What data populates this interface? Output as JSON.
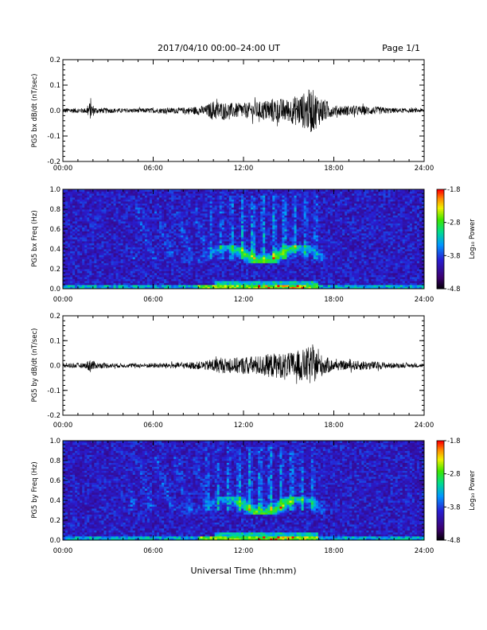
{
  "header": {
    "title": "2017/04/10  00:00–24:00 UT",
    "page": "Page 1/1"
  },
  "xlabel": "Universal Time (hh:mm)",
  "colors": {
    "background": "#ffffff",
    "axis": "#000000",
    "waveform": "#000000"
  },
  "chart_data": [
    {
      "type": "line",
      "ylabel": "PG5 bx dB/dt (nT/sec)",
      "xlim": [
        0,
        24
      ],
      "ylim": [
        -0.2,
        0.2
      ],
      "x_ticks": [
        "00:00",
        "06:00",
        "12:00",
        "18:00",
        "24:00"
      ],
      "y_ticks": [
        "-0.2",
        "-0.1",
        "0.0",
        "0.1",
        "0.2"
      ],
      "envelope": {
        "hours": [
          0,
          1.5,
          1.8,
          2.2,
          4,
          6,
          8,
          9.5,
          10,
          11,
          12,
          13,
          14,
          15,
          15.5,
          16,
          16.5,
          17,
          17.5,
          18,
          19,
          20,
          21,
          22,
          23,
          24
        ],
        "amplitude": [
          0.01,
          0.01,
          0.035,
          0.012,
          0.008,
          0.01,
          0.012,
          0.02,
          0.04,
          0.03,
          0.03,
          0.035,
          0.05,
          0.045,
          0.06,
          0.07,
          0.09,
          0.06,
          0.04,
          0.02,
          0.02,
          0.018,
          0.015,
          0.01,
          0.008,
          0.008
        ]
      }
    },
    {
      "type": "heatmap",
      "ylabel": "PG5 bx Freq (Hz)",
      "xlim": [
        0,
        24
      ],
      "ylim": [
        0,
        1.0
      ],
      "x_ticks": [
        "00:00",
        "06:00",
        "12:00",
        "18:00",
        "24:00"
      ],
      "y_ticks": [
        "0.0",
        "0.2",
        "0.4",
        "0.6",
        "0.8",
        "1.0"
      ],
      "colorbar": {
        "label": "Log₁₀ Power",
        "range": [
          -4.8,
          -1.8
        ],
        "ticks": [
          "-1.8",
          "-2.8",
          "-3.8",
          "-4.8"
        ]
      },
      "features": {
        "low_band_hours": [
          0,
          24
        ],
        "activity_hours": [
          4.5,
          17.5
        ],
        "peak_hours": [
          11,
          16.5
        ]
      }
    },
    {
      "type": "line",
      "ylabel": "PG5 by dB/dt (nT/sec)",
      "xlim": [
        0,
        24
      ],
      "ylim": [
        -0.2,
        0.2
      ],
      "x_ticks": [
        "00:00",
        "06:00",
        "12:00",
        "18:00",
        "24:00"
      ],
      "y_ticks": [
        "-0.2",
        "-0.1",
        "0.0",
        "0.1",
        "0.2"
      ],
      "envelope": {
        "hours": [
          0,
          1.5,
          1.8,
          2.2,
          4,
          6,
          8,
          9.5,
          10,
          11,
          12,
          13,
          14,
          15,
          15.5,
          16,
          16.5,
          17,
          17.5,
          18,
          19,
          20,
          21,
          22,
          23,
          24
        ],
        "amplitude": [
          0.01,
          0.01,
          0.03,
          0.012,
          0.008,
          0.01,
          0.012,
          0.018,
          0.03,
          0.03,
          0.035,
          0.04,
          0.05,
          0.05,
          0.06,
          0.065,
          0.08,
          0.05,
          0.035,
          0.02,
          0.018,
          0.02,
          0.015,
          0.01,
          0.008,
          0.008
        ]
      }
    },
    {
      "type": "heatmap",
      "ylabel": "PG5 by Freq (Hz)",
      "xlim": [
        0,
        24
      ],
      "ylim": [
        0,
        1.0
      ],
      "x_ticks": [
        "00:00",
        "06:00",
        "12:00",
        "18:00",
        "24:00"
      ],
      "y_ticks": [
        "0.0",
        "0.2",
        "0.4",
        "0.6",
        "0.8",
        "1.0"
      ],
      "colorbar": {
        "label": "Log₁₀ Power",
        "range": [
          -4.8,
          -1.8
        ],
        "ticks": [
          "-1.8",
          "-2.8",
          "-3.8",
          "-4.8"
        ]
      },
      "features": {
        "low_band_hours": [
          0,
          24
        ],
        "activity_hours": [
          4.5,
          17.5
        ],
        "peak_hours": [
          11,
          16.5
        ]
      }
    }
  ]
}
